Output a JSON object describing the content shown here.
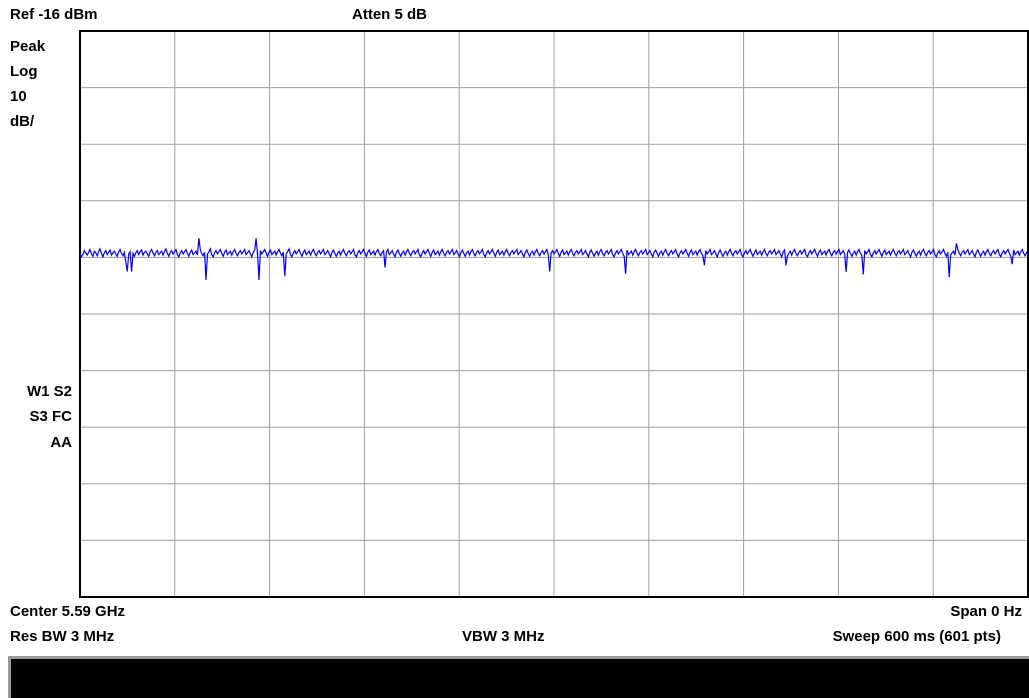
{
  "header": {
    "ref_level": "Ref -16 dBm",
    "attenuation": "Atten 5 dB"
  },
  "side_labels": {
    "detector": "Peak",
    "scale_type": "Log",
    "scale_value": "10",
    "scale_unit": "dB/",
    "trace_line1": "W1 S2",
    "trace_line2": "S3 FC",
    "trace_line3": "AA"
  },
  "footer": {
    "center": "Center 5.59 GHz",
    "span": "Span 0 Hz",
    "res_bw": "Res BW 3 MHz",
    "vbw": "VBW 3 MHz",
    "sweep": "Sweep 600 ms (601 pts)"
  },
  "colors": {
    "trace": "#0000ff",
    "grid": "#a0a0a0",
    "frame": "#000000",
    "status_bar": "#000000"
  },
  "chart_data": {
    "type": "line",
    "x_unit": "ms",
    "y_unit": "dBm",
    "xlim": [
      0,
      600
    ],
    "ylim": [
      -116,
      -16
    ],
    "grid": true,
    "x_divisions": 10,
    "y_divisions": 10,
    "series": [
      {
        "values": [
          -55.3,
          -55.9,
          -55.5,
          -54.8,
          -55.2,
          -55.6,
          -55.1,
          -54.6,
          -55.4,
          -55.8,
          -54.9,
          -55.2,
          -55.7,
          -55.0,
          -54.5,
          -55.3,
          -55.9,
          -55.2,
          -54.8,
          -55.5,
          -55.1,
          -54.7,
          -55.6,
          -55.2,
          -54.9,
          -55.4,
          -55.8,
          -55.0,
          -54.6,
          -55.3,
          -55.7,
          -55.1,
          -56.8,
          -58.5,
          -55.4,
          -55.0,
          -54.6,
          -55.3,
          -55.8,
          -55.2,
          -54.8,
          -55.5,
          -55.0,
          -54.7,
          -55.6,
          -55.1,
          -54.9,
          -55.4,
          -55.8,
          -55.0,
          -54.6,
          -55.2,
          -55.7,
          -55.1,
          -54.8,
          -55.5,
          -55.2,
          -54.9,
          -55.6,
          -55.0,
          -54.5,
          -55.3,
          -55.8,
          -55.1,
          -54.8,
          -55.4,
          -55.0,
          -54.6,
          -55.5,
          -55.9,
          -55.2,
          -54.8,
          -55.4,
          -55.0,
          -54.6,
          -55.3,
          -55.8,
          -55.1,
          -54.7,
          -55.5,
          -55.2,
          -54.9,
          -55.6,
          -55.0,
          -54.6,
          -55.3,
          -55.7,
          -55.1,
          -54.8,
          -55.4,
          -55.0,
          -54.5,
          -55.5,
          -55.9,
          -55.2,
          -54.8,
          -55.4,
          -55.0,
          -54.6,
          -55.3,
          -55.8,
          -55.1,
          -54.7,
          -55.5,
          -55.2,
          -54.9,
          -55.6,
          -55.0,
          -54.6,
          -55.3,
          -55.7,
          -55.1,
          -54.8,
          -55.4,
          -55.0,
          -54.6,
          -55.5,
          -55.2,
          -54.8,
          -55.4,
          -55.9,
          -55.1,
          -54.7,
          -52.6,
          -55.5,
          -60.0,
          -54.8,
          -55.4,
          -55.0,
          -54.6,
          -55.3,
          -55.8,
          -55.1,
          -54.7,
          -55.5,
          -55.2,
          -54.9,
          -55.6,
          -55.0,
          -54.6,
          -55.3,
          -55.7,
          -55.1,
          -54.8,
          -55.4,
          -55.0,
          -54.5,
          -55.5,
          -55.9,
          -55.2,
          -54.8,
          -55.4,
          -55.0,
          -54.6,
          -55.3,
          -55.8,
          -55.1,
          -54.7,
          -55.5,
          -55.2,
          -54.9,
          -55.6,
          -55.0,
          -54.6,
          -55.3,
          -55.7,
          -55.1,
          -54.8,
          -55.4,
          -55.0,
          -54.6,
          -55.5,
          -55.2,
          -54.8,
          -55.4,
          -55.9,
          -55.1,
          -54.7,
          -55.3,
          -55.8,
          -55.2,
          -54.9,
          -55.6,
          -55.0,
          -54.6,
          -55.3,
          -55.7,
          -55.1,
          -54.8,
          -55.4,
          -55.0,
          -54.6,
          -55.5,
          -55.9,
          -55.2,
          -54.8,
          -55.4,
          -55.0,
          -54.6,
          -55.3,
          -55.8,
          -55.1,
          -54.7,
          -55.5,
          -55.2,
          -54.9,
          -55.6,
          -55.0,
          -54.6,
          -55.3,
          -55.7,
          -55.1,
          -54.8,
          -55.4,
          -55.0,
          -54.6,
          -55.5,
          -55.2,
          -54.8,
          -55.4,
          -55.9,
          -55.1,
          -54.7,
          -55.3,
          -55.8,
          -55.2,
          -54.9,
          -55.6,
          -55.0,
          -54.6,
          -55.3,
          -55.7,
          -55.1,
          -54.8,
          -55.4,
          -55.0,
          -54.6,
          -55.5,
          -55.9,
          -55.2,
          -54.8,
          -55.4,
          -55.0,
          -54.6,
          -55.3,
          -55.8,
          -55.1,
          -54.7,
          -55.5,
          -55.2,
          -54.9,
          -55.6,
          -55.0,
          -54.6,
          -55.3,
          -55.7,
          -55.1,
          -54.8,
          -55.4,
          -55.0,
          -54.6,
          -55.5,
          -55.2,
          -54.8,
          -55.4,
          -55.9,
          -55.1,
          -54.7,
          -55.3,
          -55.8,
          -55.2,
          -54.9,
          -55.6,
          -55.0,
          -54.6,
          -55.3,
          -55.7,
          -55.1,
          -54.8,
          -55.4,
          -55.0,
          -54.6,
          -55.5,
          -55.9,
          -55.2,
          -54.8,
          -55.4,
          -55.0,
          -54.6,
          -55.3,
          -55.8,
          -55.1,
          -54.7,
          -55.5,
          -55.2,
          -54.9,
          -55.6,
          -55.0,
          -54.6,
          -55.3,
          -55.7,
          -55.1,
          -54.8,
          -55.4,
          -55.0,
          -54.6,
          -55.5,
          -55.2,
          -54.8,
          -55.4,
          -55.9,
          -55.1,
          -54.7,
          -55.3,
          -55.8,
          -55.2,
          -54.9,
          -55.6,
          -55.0,
          -54.6,
          -55.3,
          -55.7,
          -55.1,
          -54.8,
          -55.4,
          -55.0,
          -54.6,
          -55.5,
          -55.9,
          -55.2,
          -54.8,
          -55.4,
          -55.0,
          -54.6,
          -55.3,
          -55.8,
          -55.1,
          -54.7,
          -55.5,
          -55.2,
          -54.9,
          -55.6,
          -55.0,
          -54.6,
          -55.3,
          -55.7,
          -55.1,
          -54.8,
          -55.4,
          -55.0,
          -54.6,
          -55.5,
          -55.2,
          -54.8,
          -55.4,
          -55.9,
          -55.1,
          -54.7,
          -55.3,
          -55.8,
          -55.2,
          -54.9,
          -55.6,
          -55.0,
          -54.6,
          -55.3,
          -55.7,
          -55.1,
          -54.8,
          -55.4,
          -55.0,
          -54.6,
          -55.5,
          -55.9,
          -55.2,
          -54.8,
          -55.4,
          -55.0,
          -54.6,
          -55.3,
          -55.8,
          -55.1,
          -54.7,
          -55.5,
          -55.2,
          -54.9,
          -55.6,
          -55.0,
          -54.6,
          -55.3,
          -55.7,
          -55.1,
          -54.8,
          -55.4,
          -55.0,
          -54.6,
          -55.5,
          -55.2,
          -54.8,
          -55.4,
          -55.9,
          -55.1,
          -54.7,
          -55.3,
          -55.8,
          -55.2,
          -54.9,
          -55.6,
          -55.0,
          -54.6,
          -55.3,
          -55.7,
          -55.1,
          -54.8,
          -55.4,
          -55.0,
          -54.6,
          -55.5,
          -55.9,
          -55.2,
          -54.8,
          -55.4,
          -55.0,
          -54.6,
          -55.3,
          -55.8,
          -55.1,
          -54.7,
          -55.5,
          -55.2,
          -54.9,
          -55.6,
          -55.0,
          -54.6,
          -55.3,
          -55.7,
          -55.1,
          -54.8,
          -55.4,
          -55.0,
          -54.6,
          -55.5,
          -55.2,
          -54.8,
          -55.4,
          -55.9,
          -55.1,
          -54.7,
          -55.3,
          -55.8,
          -55.2,
          -54.9,
          -55.6,
          -55.0,
          -54.6,
          -55.3,
          -55.7,
          -55.1,
          -54.8,
          -55.4,
          -55.0,
          -54.6,
          -55.5,
          -55.9,
          -55.2,
          -54.8,
          -55.4,
          -55.0,
          -54.6,
          -55.3,
          -55.8,
          -55.1,
          -54.7,
          -55.5,
          -55.2,
          -54.9,
          -55.6,
          -55.0,
          -54.6,
          -55.3,
          -55.7,
          -55.1,
          -54.8,
          -55.4,
          -55.0,
          -54.6,
          -55.5,
          -55.2,
          -54.8,
          -55.4,
          -55.9,
          -55.1,
          -54.7,
          -55.3,
          -55.8,
          -55.2,
          -54.9,
          -55.6,
          -55.0,
          -54.6,
          -55.3,
          -55.7,
          -55.1,
          -54.8,
          -55.4,
          -55.0,
          -54.6,
          -55.5,
          -55.9,
          -55.2,
          -54.8,
          -55.4,
          -55.0,
          -54.6,
          -55.3,
          -55.8,
          -55.1,
          -54.7,
          -55.5,
          -55.2,
          -54.9,
          -55.6,
          -55.0,
          -54.6,
          -55.3,
          -55.7,
          -55.1,
          -54.8,
          -55.4,
          -55.0,
          -54.6,
          -55.5,
          -55.2,
          -54.8,
          -55.4,
          -55.9,
          -55.1,
          -54.7,
          -55.3,
          -55.8,
          -55.2,
          -54.9,
          -55.6,
          -55.0,
          -54.6,
          -55.3,
          -55.7,
          -55.1,
          -54.8,
          -55.4,
          -55.0,
          -54.6,
          -55.5,
          -55.9,
          -55.2,
          -54.8,
          -55.4,
          -55.0,
          -54.6,
          -55.3,
          -55.8,
          -55.1,
          -54.7,
          -55.5,
          -55.2,
          -54.9,
          -55.6,
          -55.0,
          -54.6,
          -55.3,
          -55.7,
          -55.1,
          -54.8,
          -55.4,
          -55.0,
          -54.6,
          -55.5,
          -55.2,
          -54.8,
          -55.4,
          -55.9,
          -55.1,
          -54.7,
          -55.3,
          -55.8,
          -55.2,
          -54.9,
          -55.6,
          -55.0,
          -54.6,
          -55.3,
          -55.7,
          -55.1,
          -54.8,
          -55.4,
          -55.0,
          -54.6,
          -55.5,
          -55.9,
          -55.2,
          -54.8,
          -55.4,
          -55.0,
          -54.6,
          -55.3,
          -55.8,
          -55.1,
          -54.7,
          -55.5,
          -55.2,
          -54.9,
          -55.6,
          -55.0,
          -54.6,
          -55.3,
          -55.7,
          -55.1,
          -54.8,
          -55.4,
          -55.0,
          -54.6,
          -55.5,
          -55.2,
          -54.8,
          -55.4,
          -55.9,
          -55.1,
          -54.7,
          -55.3,
          -55.8,
          -55.2,
          -54.9,
          -55.6,
          -55.0,
          -54.6,
          -55.3,
          -55.7,
          -55.1,
          -54.8,
          -55.4,
          -55.0,
          -54.6,
          -55.5,
          -55.9,
          -55.2,
          -54.8,
          -55.4,
          -55.0,
          -54.6,
          -55.3,
          -55.8,
          -55.1,
          -54.7,
          -55.5,
          -55.2,
          -54.9,
          -55.6,
          -55.0,
          -54.6,
          -55.3,
          -55.7,
          -55.1,
          -54.8
        ]
      }
    ],
    "features": [
      {
        "x": 33,
        "y": -58.5
      },
      {
        "x": 80,
        "y": -60.0
      },
      {
        "x": 130,
        "y": -59.3
      },
      {
        "x": 193,
        "y": -57.8
      },
      {
        "x": 297,
        "y": -58.5
      },
      {
        "x": 345,
        "y": -58.9
      },
      {
        "x": 395,
        "y": -57.4
      },
      {
        "x": 447,
        "y": -57.4
      },
      {
        "x": 485,
        "y": -58.6
      },
      {
        "x": 496,
        "y": -59.0
      },
      {
        "x": 550,
        "y": -59.5
      },
      {
        "x": 590,
        "y": -57.2
      },
      {
        "x": 75,
        "y": -52.6
      },
      {
        "x": 555,
        "y": -53.5
      }
    ]
  }
}
